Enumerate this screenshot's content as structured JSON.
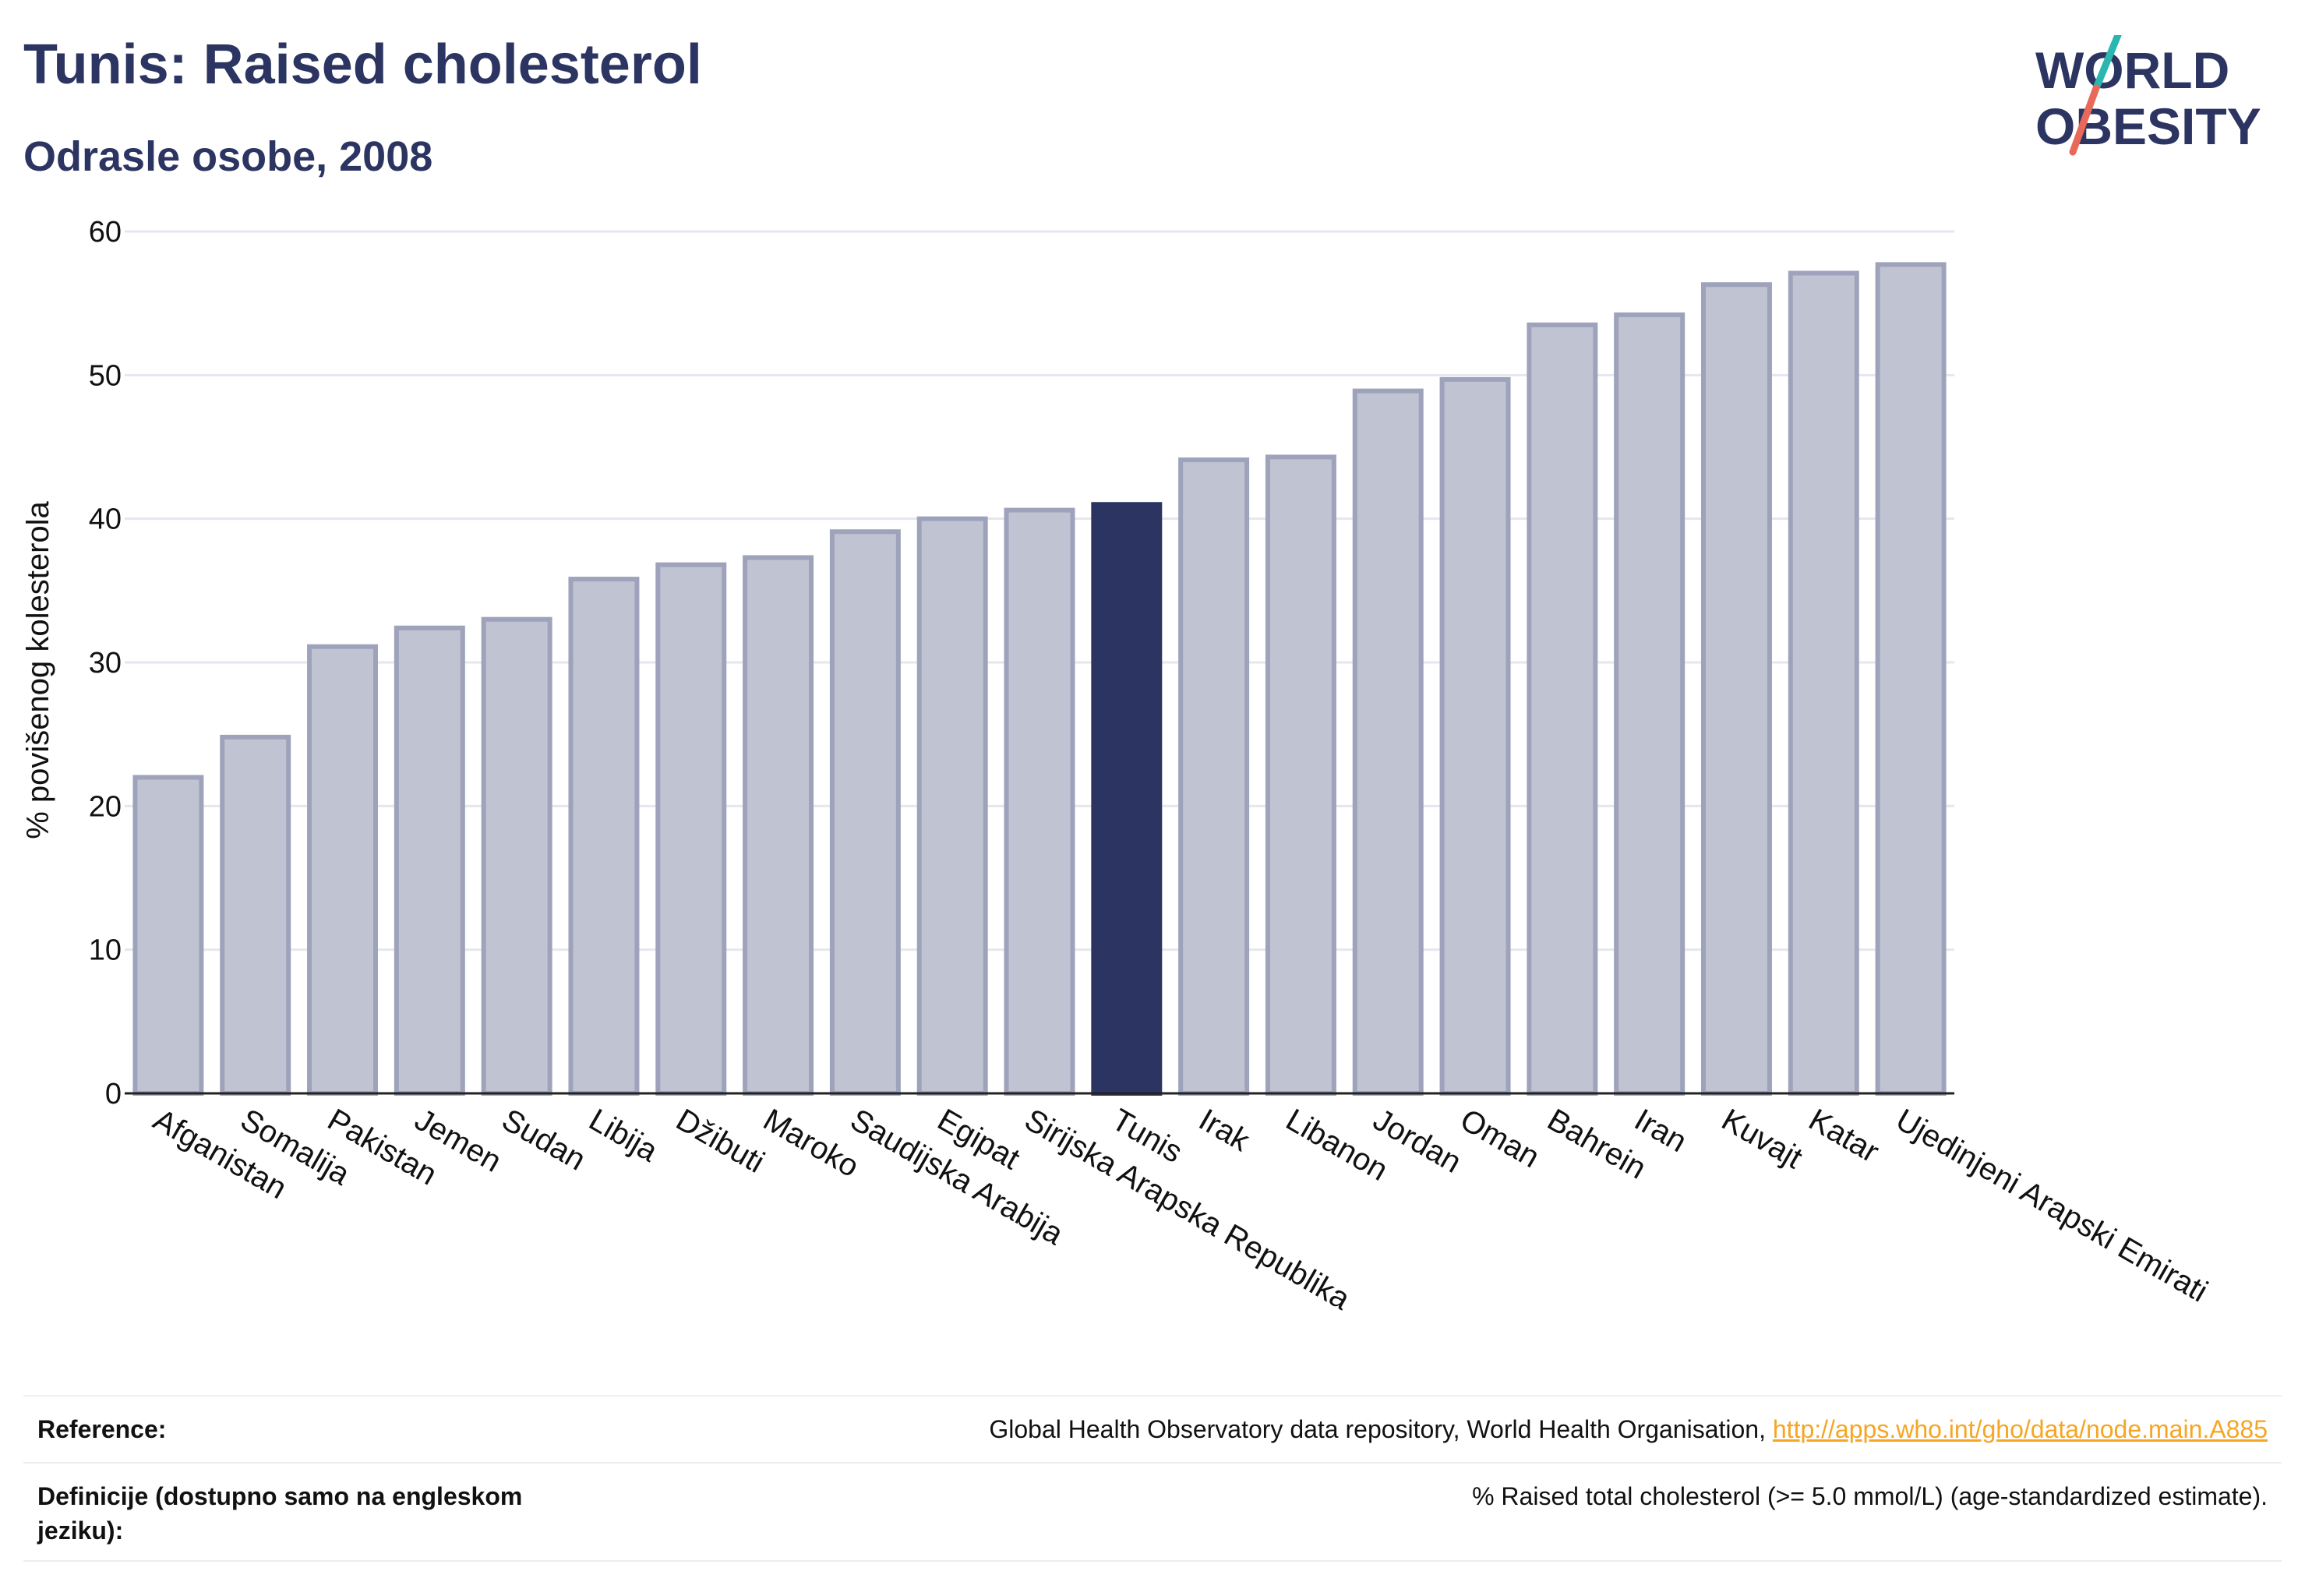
{
  "header": {
    "title": "Tunis: Raised cholesterol",
    "subtitle": "Odrasle osobe, 2008"
  },
  "logo": {
    "line1": "WORLD",
    "line2": "OBESITY",
    "colors": {
      "text": "#2c3561",
      "slash_top": "#2bb6b0",
      "slash_bottom": "#e8695a"
    }
  },
  "chart_data": {
    "type": "bar",
    "ylabel": "% povišenog kolesterola",
    "xlabel": "",
    "ylim": [
      0,
      60
    ],
    "yticks": [
      0,
      10,
      20,
      30,
      40,
      50,
      60
    ],
    "grid": true,
    "highlight": "Tunis",
    "colors": {
      "bar": "#c0c3d1",
      "bar_stroke": "#9ea3bb",
      "highlight": "#2c3561",
      "grid": "#e6e7ee",
      "axis": "#222222"
    },
    "categories": [
      "Afganistan",
      "Somalija",
      "Pakistan",
      "Jemen",
      "Sudan",
      "Libija",
      "Džibuti",
      "Maroko",
      "Saudijska Arabija",
      "Egipat",
      "Sirijska Arapska Republika",
      "Tunis",
      "Irak",
      "Libanon",
      "Jordan",
      "Oman",
      "Bahrein",
      "Iran",
      "Kuvajt",
      "Katar",
      "Ujedinjeni Arapski Emirati"
    ],
    "values": [
      22.0,
      24.8,
      31.1,
      32.4,
      33.0,
      35.8,
      36.8,
      37.3,
      39.1,
      40.0,
      40.6,
      41.0,
      44.1,
      44.3,
      48.9,
      49.7,
      53.5,
      54.2,
      56.3,
      57.1,
      57.7
    ]
  },
  "reference": {
    "rows": [
      {
        "label": "Reference:",
        "text": "Global Health Observatory data repository, World Health Organisation, ",
        "link": "http://apps.who.int/gho/data/node.main.A885"
      },
      {
        "label": "Definicije (dostupno samo na engleskom jeziku):",
        "text": "% Raised total cholesterol (>= 5.0 mmol/L) (age-standardized estimate)."
      }
    ]
  }
}
